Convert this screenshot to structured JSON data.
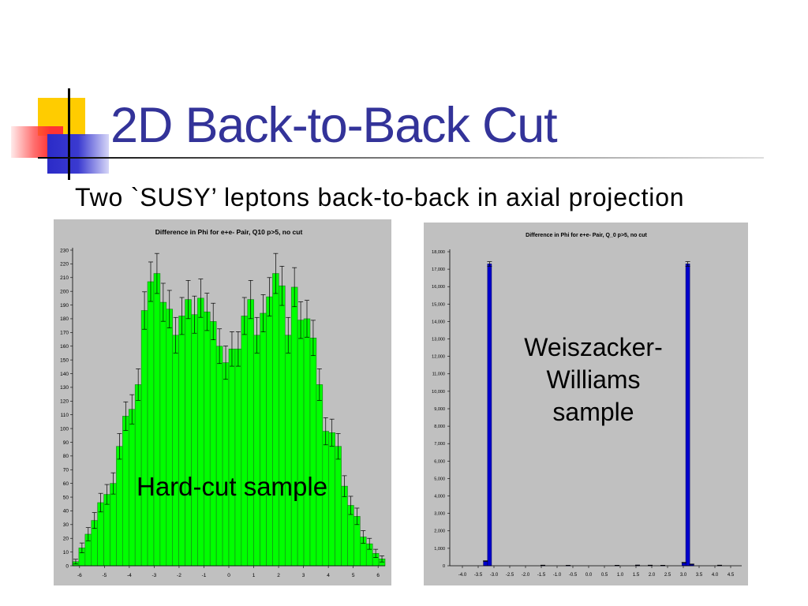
{
  "slide": {
    "title": "2D Back-to-Back Cut",
    "subtitle": "Two `SUSY’ leptons back-to-back in axial projection"
  },
  "colors": {
    "title_text": "#333399",
    "chart_background": "#C0C0C0",
    "decoration_yellow": "#FFCC00",
    "decoration_red": "#FF3333",
    "decoration_blue": "#2B2BC8"
  },
  "chart_data": [
    {
      "type": "bar",
      "title": "Difference in Phi for e+e- Pair, Q10 p>5, no cut",
      "annotation": "Hard-cut sample",
      "xlim": [
        -6.28,
        6.28
      ],
      "ylim": [
        0,
        230
      ],
      "xtick_labels": [
        "-6",
        "-5",
        "-4",
        "-3",
        "-2",
        "-1",
        "0",
        "1",
        "2",
        "3",
        "4",
        "5",
        "6"
      ],
      "ytick_labels": [
        "0",
        "10",
        "20",
        "30",
        "40",
        "50",
        "60",
        "70",
        "80",
        "90",
        "100",
        "110",
        "120",
        "130",
        "140",
        "150",
        "160",
        "170",
        "180",
        "190",
        "200",
        "210",
        "220",
        "230"
      ],
      "values": [
        3,
        13,
        23,
        33,
        46,
        52,
        60,
        87,
        109,
        114,
        132,
        186,
        207,
        213,
        192,
        187,
        168,
        182,
        194,
        183,
        195,
        185,
        178,
        160,
        148,
        158,
        158,
        182,
        194,
        168,
        184,
        196,
        213,
        204,
        168,
        203,
        179,
        180,
        166,
        132,
        98,
        97,
        87,
        58,
        44,
        36,
        21,
        16,
        9,
        5
      ],
      "error_bars": true,
      "grid": false,
      "bar_color": "#00FF00"
    },
    {
      "type": "bar",
      "title": "Difference in Phi for e+e- Pair, Q_0 p>5, no cut",
      "annotation": [
        "Weiszacker-",
        "Williams",
        "sample"
      ],
      "xlim": [
        -4.4,
        4.85
      ],
      "ylim": [
        0,
        18000
      ],
      "xtick_labels": [
        "-4.0",
        "-3.5",
        "-3.0",
        "-2.5",
        "-2.0",
        "-1.5",
        "-1.0",
        "-0.5",
        "0.0",
        "0.5",
        "1.0",
        "1.5",
        "2.0",
        "2.5",
        "3.0",
        "3.5",
        "4.0",
        "4.5"
      ],
      "ytick_labels": [
        "0",
        "1,000",
        "2,000",
        "3,000",
        "4,000",
        "5,000",
        "6,000",
        "7,000",
        "8,000",
        "9,000",
        "10,000",
        "11,000",
        "12,000",
        "13,000",
        "14,000",
        "15,000",
        "16,000",
        "17,000",
        "18,000"
      ],
      "x": [
        -3.27,
        -3.14,
        -1.45,
        -0.65,
        0.9,
        1.55,
        1.95,
        2.35,
        3.02,
        3.14,
        3.27,
        4.15
      ],
      "values": [
        270,
        17300,
        30,
        20,
        25,
        35,
        30,
        25,
        180,
        17300,
        90,
        30
      ],
      "error_bars": true,
      "grid": false,
      "bar_color": "#0000CC"
    }
  ]
}
